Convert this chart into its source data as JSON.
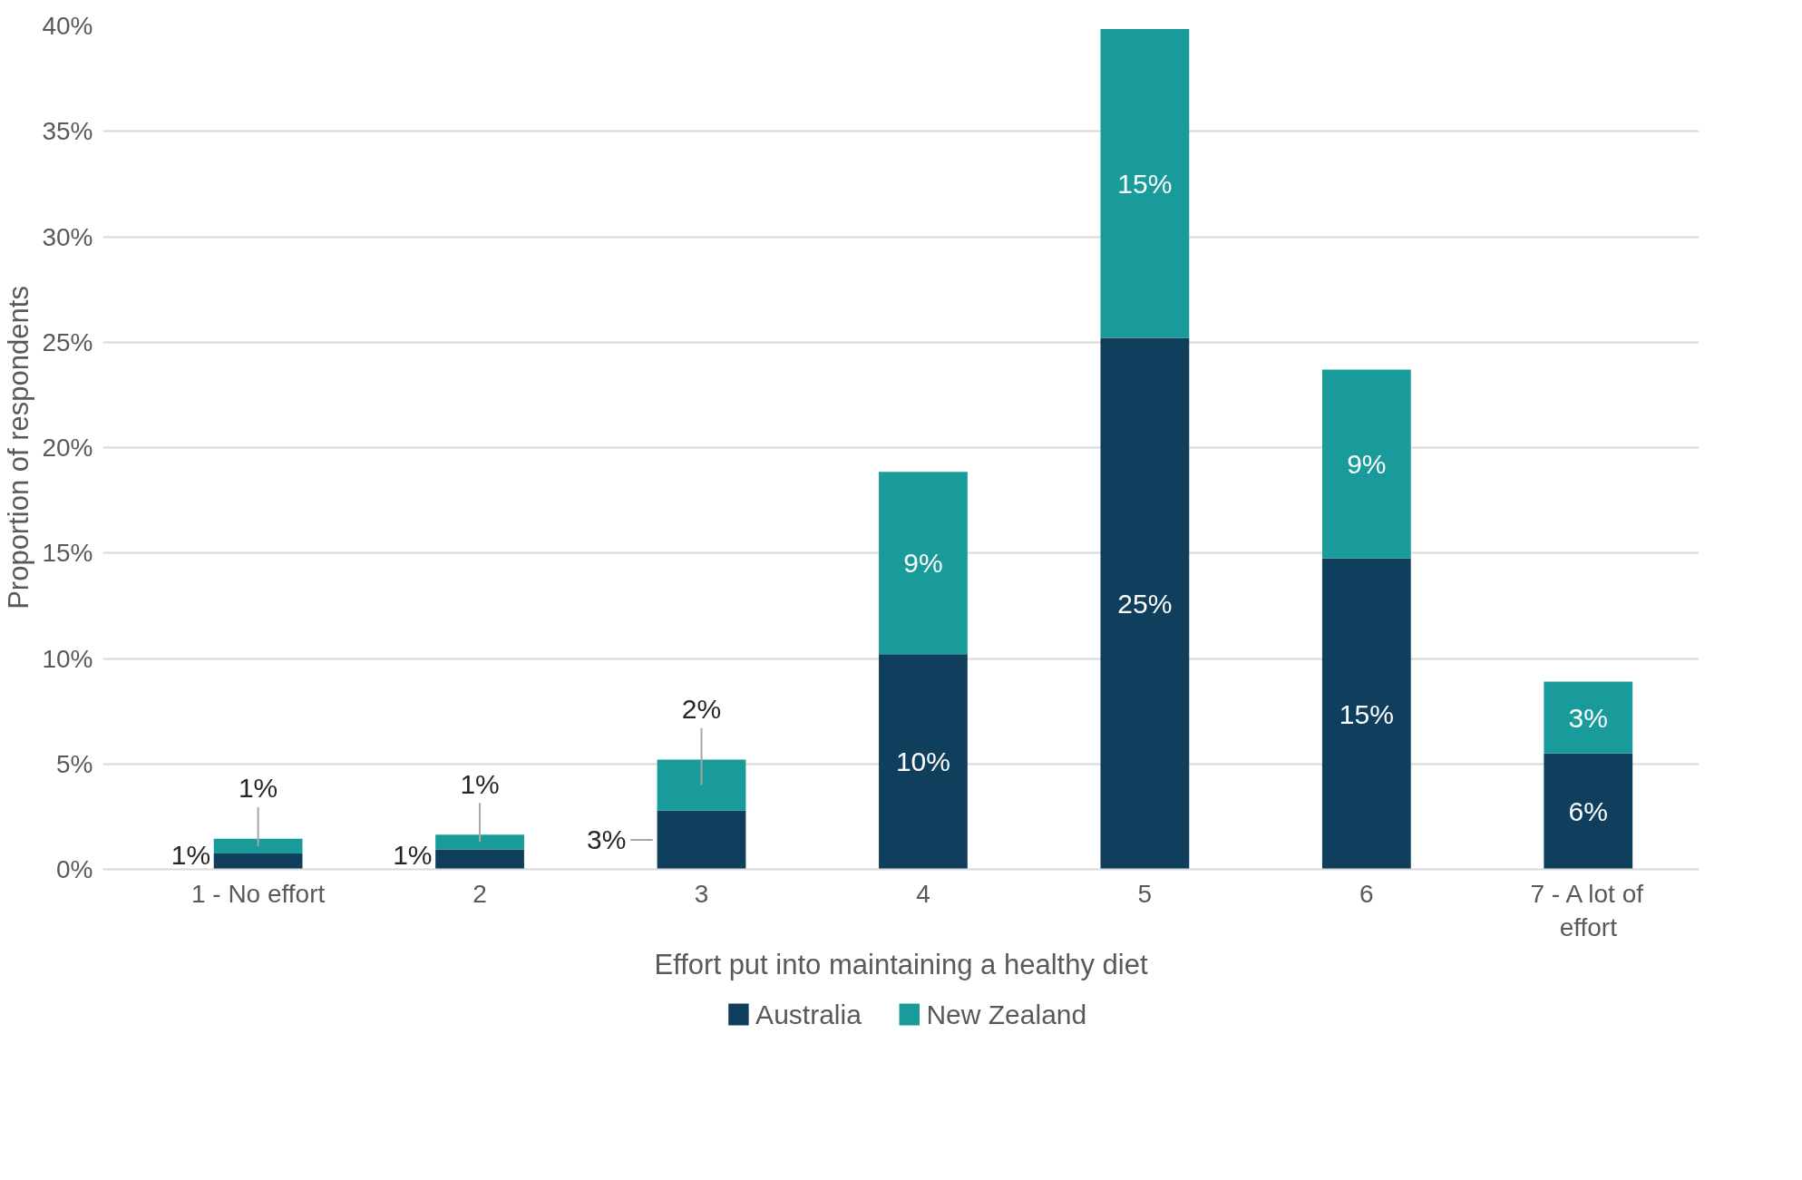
{
  "chart_data": {
    "type": "bar",
    "stacked": true,
    "xlabel": "Effort put into maintaining a healthy diet",
    "ylabel": "Proportion of respondents",
    "categories": [
      "1 - No effort",
      "2",
      "3",
      "4",
      "5",
      "6",
      "7 - A lot of effort"
    ],
    "series": [
      {
        "name": "Australia",
        "color": "#0f3f5c",
        "values": [
          0.75,
          0.95,
          2.8,
          10.2,
          25.2,
          14.75,
          5.5
        ],
        "value_labels": [
          "1%",
          "1%",
          "3%",
          "10%",
          "25%",
          "15%",
          "6%"
        ]
      },
      {
        "name": "New Zealand",
        "color": "#1a9b9b",
        "values": [
          0.7,
          0.7,
          2.4,
          8.65,
          14.65,
          8.95,
          3.4
        ],
        "value_labels": [
          "1%",
          "1%",
          "2%",
          "9%",
          "15%",
          "9%",
          "3%"
        ]
      }
    ],
    "ylim": [
      0,
      40
    ],
    "yticks": [
      {
        "value": 0,
        "label": "0%"
      },
      {
        "value": 5,
        "label": "5%"
      },
      {
        "value": 10,
        "label": "10%"
      },
      {
        "value": 15,
        "label": "15%"
      },
      {
        "value": 20,
        "label": "20%"
      },
      {
        "value": 25,
        "label": "25%"
      },
      {
        "value": 30,
        "label": "30%"
      },
      {
        "value": 35,
        "label": "35%"
      },
      {
        "value": 40,
        "label": "40%"
      }
    ],
    "grid": "y",
    "legend": "bottom"
  }
}
